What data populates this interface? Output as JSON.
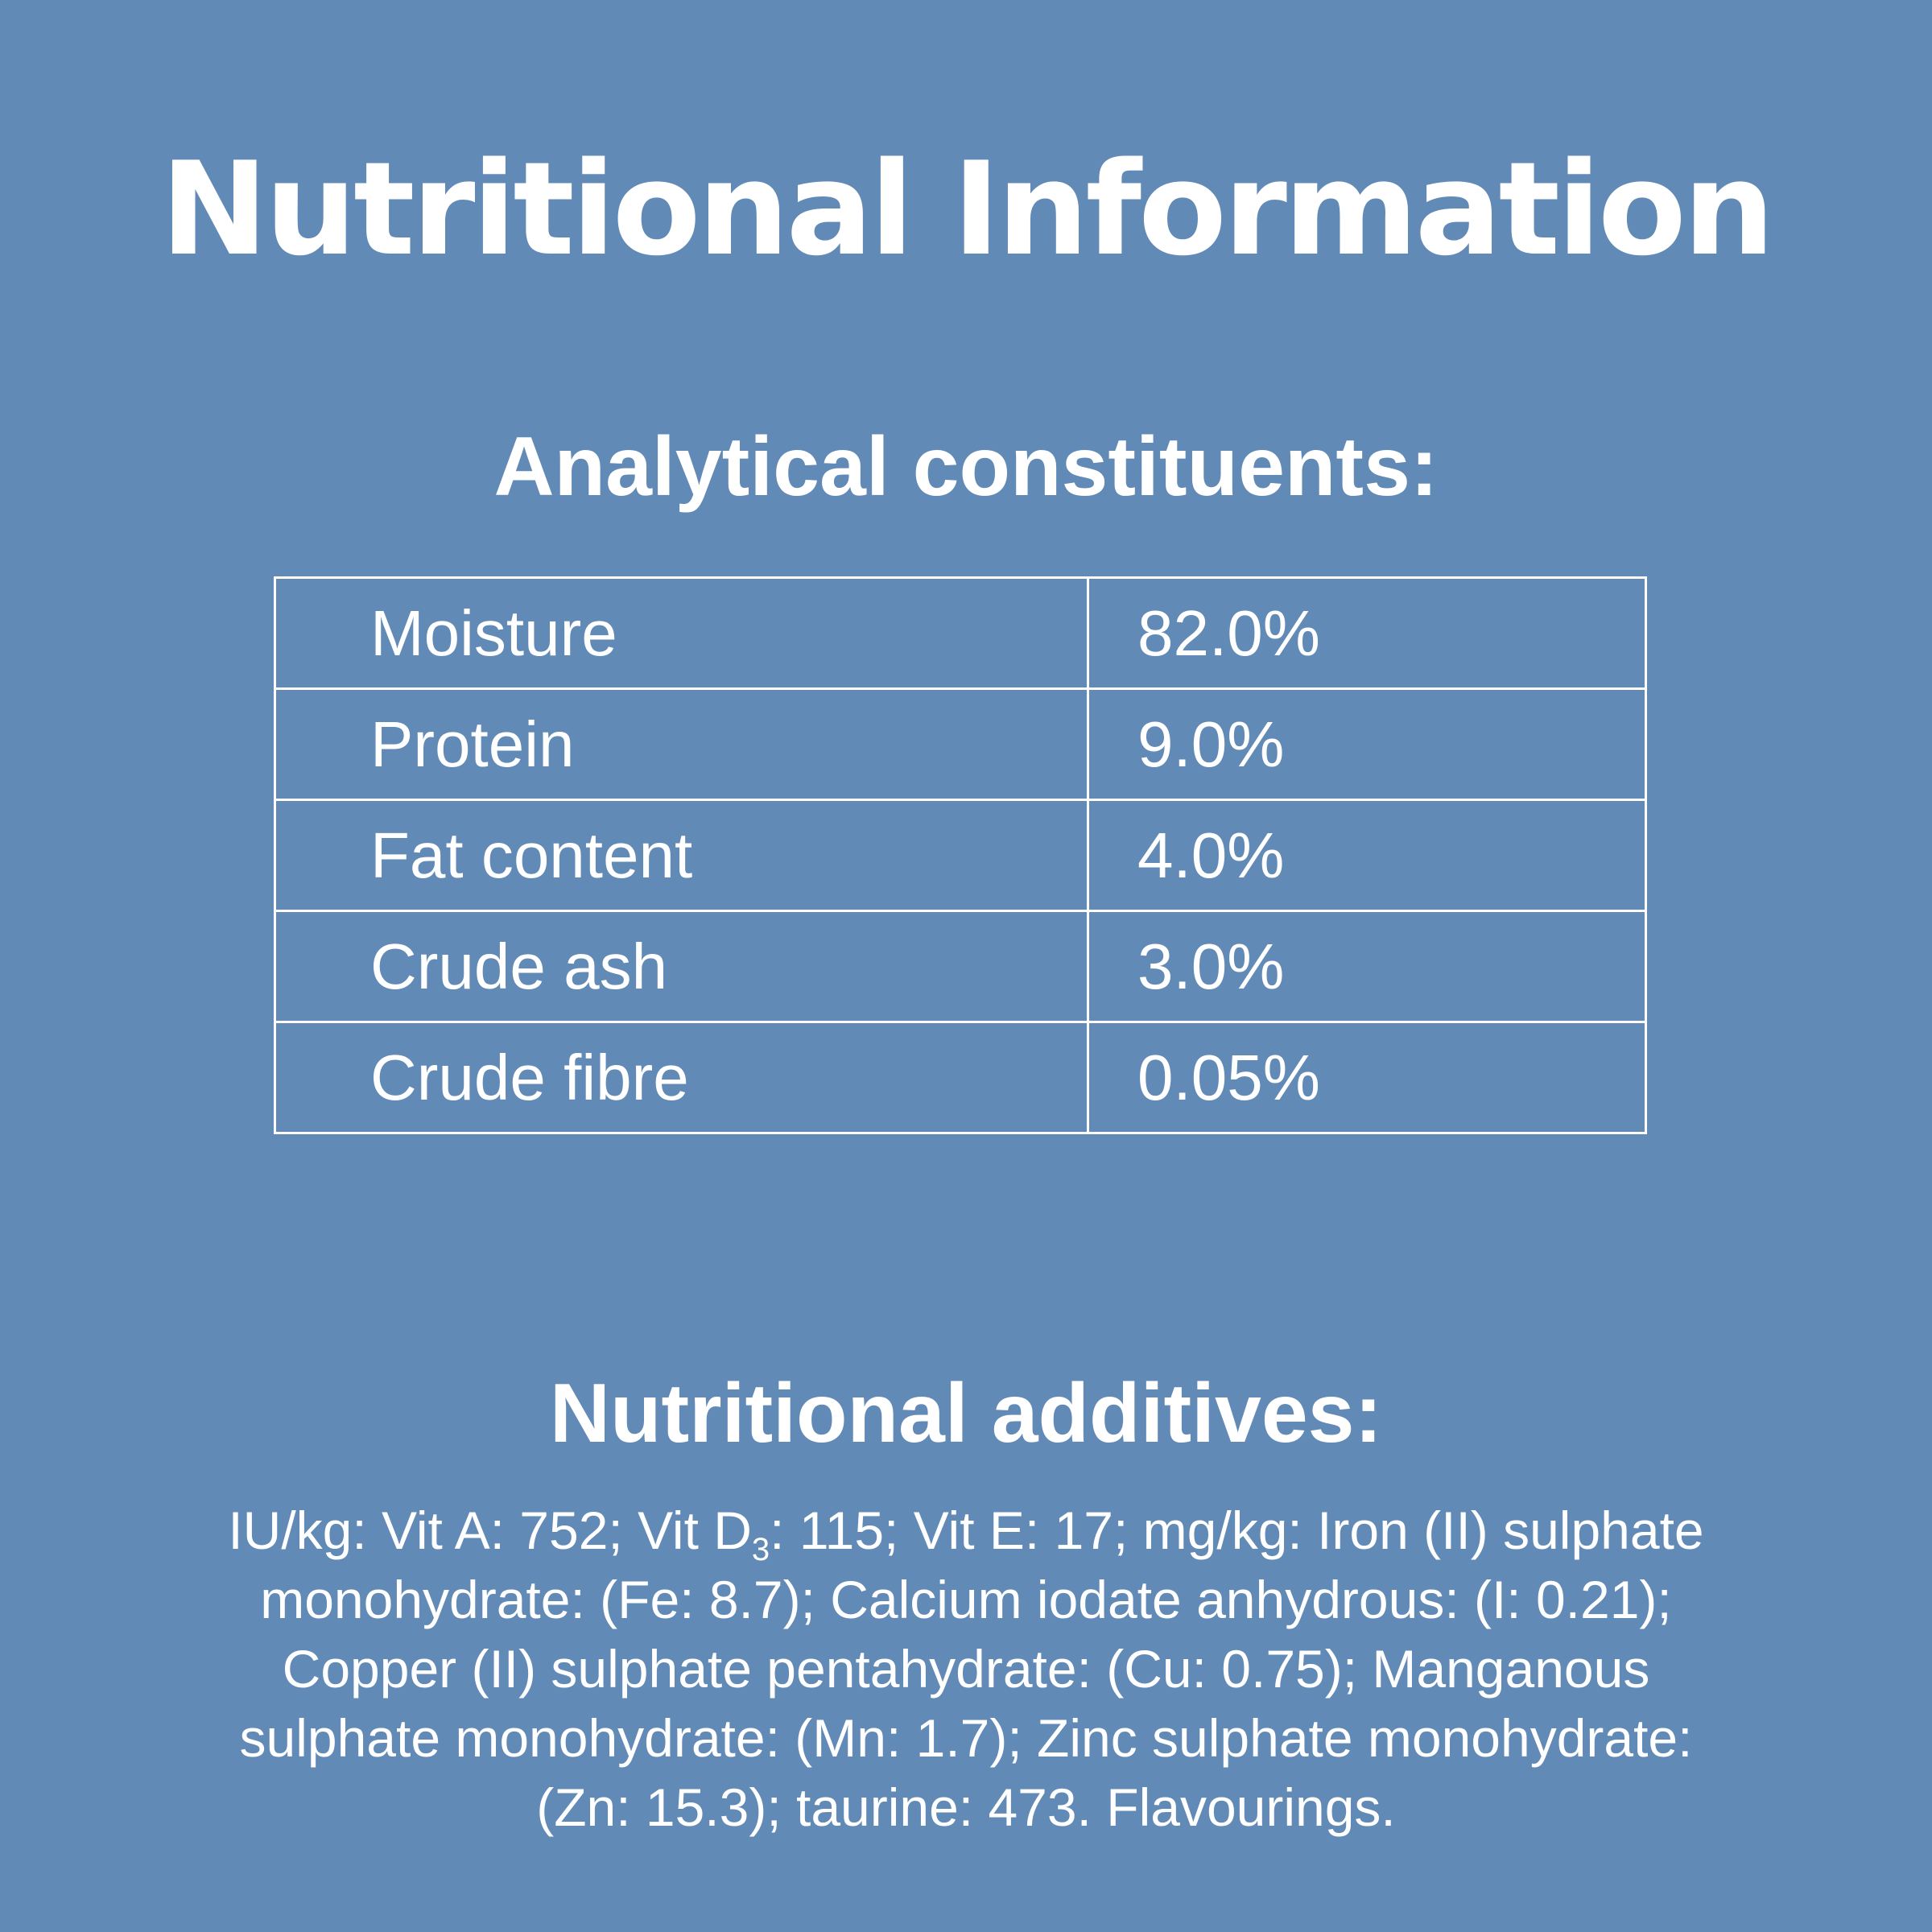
{
  "title": "Nutritional Information",
  "analytical": {
    "heading": "Analytical constituents:",
    "rows": [
      {
        "name": "Moisture",
        "value": "82.0%"
      },
      {
        "name": "Protein",
        "value": "9.0%"
      },
      {
        "name": "Fat content",
        "value": "4.0%"
      },
      {
        "name": "Crude ash",
        "value": "3.0%"
      },
      {
        "name": "Crude fibre",
        "value": "0.05%"
      }
    ]
  },
  "additives": {
    "heading": "Nutritional additives:",
    "text_before_sub": "IU/kg: Vit A: 752; Vit D",
    "subscript": "3",
    "text_after_sub": ": 115; Vit E: 17; mg/kg: Iron (II) sulphate monohydrate: (Fe: 8.7); Calcium iodate anhydrous: (I: 0.21); Copper (II) sulphate pentahydrate: (Cu: 0.75); Manganous sulphate monohydrate: (Mn: 1.7); Zinc sulphate monohydrate: (Zn: 15.3); taurine: 473. Flavourings."
  },
  "colors": {
    "background": "#628ab6",
    "text": "#ffffff"
  }
}
